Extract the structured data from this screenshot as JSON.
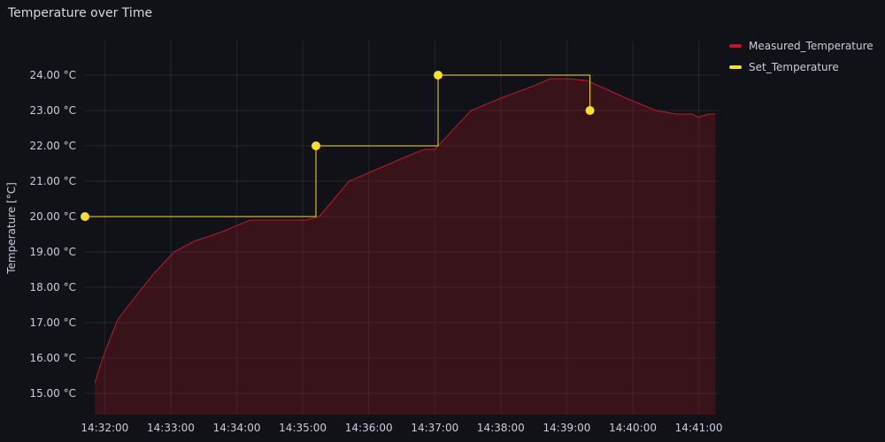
{
  "panel": {
    "title": "Temperature over Time"
  },
  "chart_data": {
    "type": "line",
    "title": "Temperature over Time",
    "xlabel": "",
    "ylabel": "Temperature [°C]",
    "ylim": [
      14.4,
      25.0
    ],
    "xlim_minutes": [
      31.7,
      41.3
    ],
    "y_ticks": [
      "15.00 °C",
      "16.00 °C",
      "17.00 °C",
      "18.00 °C",
      "19.00 °C",
      "20.00 °C",
      "21.00 °C",
      "22.00 °C",
      "23.00 °C",
      "24.00 °C"
    ],
    "y_tick_values": [
      15,
      16,
      17,
      18,
      19,
      20,
      21,
      22,
      23,
      24
    ],
    "x_ticks": [
      "14:32:00",
      "14:33:00",
      "14:34:00",
      "14:35:00",
      "14:36:00",
      "14:37:00",
      "14:38:00",
      "14:39:00",
      "14:40:00",
      "14:41:00"
    ],
    "x_tick_minutes": [
      32,
      33,
      34,
      35,
      36,
      37,
      38,
      39,
      40,
      41
    ],
    "grid": true,
    "legend_placement": "top-right",
    "series": [
      {
        "name": "Measured_Temperature",
        "color": "#c4162a",
        "fill": true,
        "x_minutes": [
          31.85,
          31.95,
          32.05,
          32.2,
          32.45,
          32.75,
          33.05,
          33.35,
          33.75,
          34.2,
          34.6,
          35.05,
          35.25,
          35.7,
          36.2,
          36.7,
          36.85,
          37.0,
          37.2,
          37.55,
          38.0,
          38.5,
          38.75,
          39.0,
          39.3,
          39.6,
          39.9,
          40.35,
          40.65,
          40.9,
          41.0,
          41.05,
          41.15,
          41.25
        ],
        "values": [
          15.3,
          15.9,
          16.4,
          17.1,
          17.7,
          18.4,
          19.0,
          19.3,
          19.55,
          19.9,
          19.9,
          19.9,
          20.0,
          21.0,
          21.4,
          21.8,
          21.9,
          21.9,
          22.3,
          23.0,
          23.35,
          23.7,
          23.9,
          23.9,
          23.85,
          23.6,
          23.35,
          23.0,
          22.9,
          22.9,
          22.8,
          22.85,
          22.9,
          22.9
        ]
      },
      {
        "name": "Set_Temperature",
        "color": "#fade2a",
        "step": true,
        "x_minutes": [
          31.7,
          35.2,
          37.05,
          39.35
        ],
        "values": [
          20.0,
          22.0,
          24.0,
          23.0
        ]
      }
    ]
  }
}
